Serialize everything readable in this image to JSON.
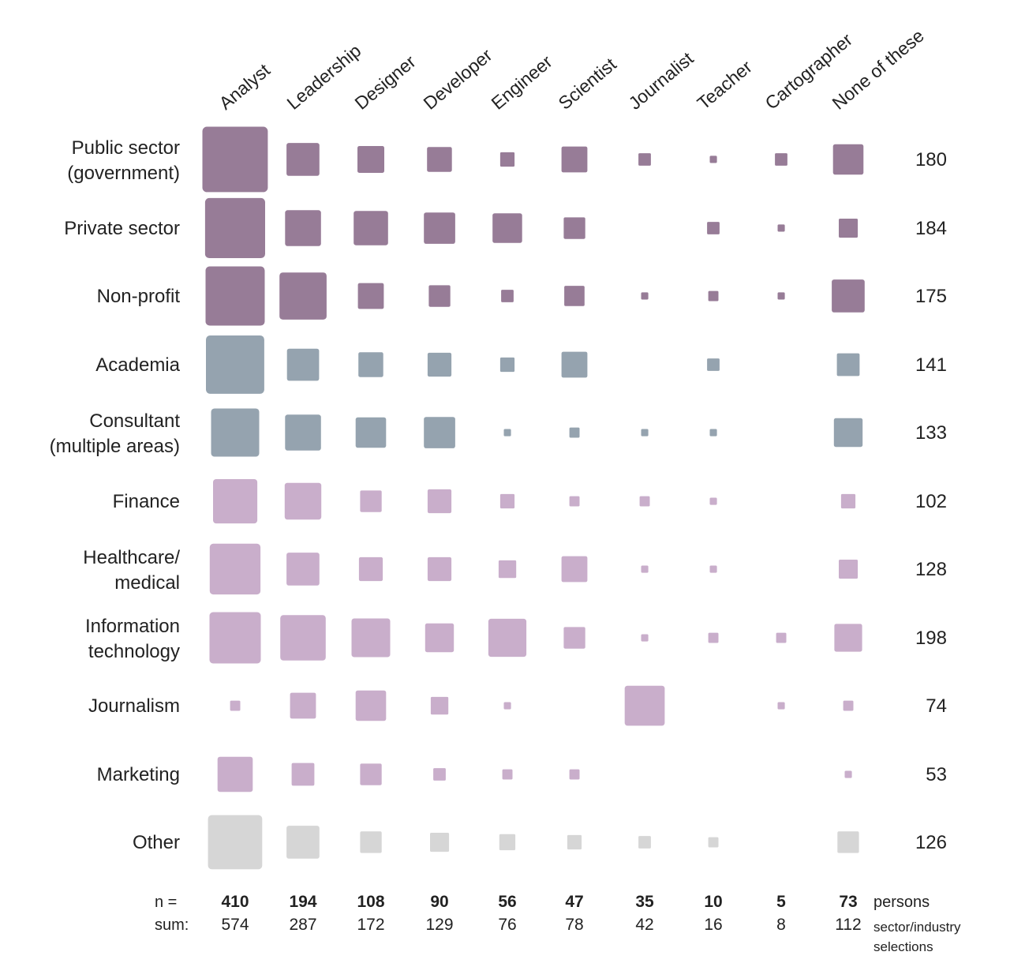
{
  "chart_data": {
    "type": "heatmap",
    "encoding": "square-area",
    "columns": [
      "Analyst",
      "Leadership",
      "Designer",
      "Developer",
      "Engineer",
      "Scientist",
      "Journalist",
      "Teacher",
      "Cartographer",
      "None of these"
    ],
    "rows": [
      {
        "label": [
          "Public sector",
          "(government)"
        ],
        "group": "purple_dark",
        "total": "180",
        "values": [
          83,
          21,
          14,
          12,
          4,
          13,
          3,
          1,
          3,
          18
        ]
      },
      {
        "label": [
          "Private sector"
        ],
        "group": "purple_dark",
        "total": "184",
        "values": [
          70,
          25,
          23,
          19,
          17,
          9,
          0,
          3,
          1,
          7
        ]
      },
      {
        "label": [
          "Non-profit"
        ],
        "group": "purple_dark",
        "total": "175",
        "values": [
          68,
          43,
          13,
          9,
          3,
          8,
          1,
          2,
          1,
          21
        ]
      },
      {
        "label": [
          "Academia"
        ],
        "group": "blue_gray",
        "total": "141",
        "values": [
          66,
          20,
          12,
          11,
          4,
          13,
          0,
          3,
          0,
          10
        ]
      },
      {
        "label": [
          "Consultant",
          "(multiple areas)"
        ],
        "group": "blue_gray",
        "total": "133",
        "values": [
          45,
          25,
          18,
          19,
          1,
          2,
          1,
          1,
          0,
          16
        ]
      },
      {
        "label": [
          "Finance"
        ],
        "group": "purple_light",
        "total": "102",
        "values": [
          38,
          26,
          9,
          11,
          4,
          2,
          2,
          1,
          0,
          4
        ]
      },
      {
        "label": [
          "Healthcare/",
          "medical"
        ],
        "group": "purple_light",
        "total": "128",
        "values": [
          50,
          21,
          11,
          11,
          6,
          13,
          1,
          1,
          0,
          7
        ]
      },
      {
        "label": [
          "Information",
          "technology"
        ],
        "group": "purple_light",
        "total": "198",
        "values": [
          51,
          40,
          29,
          16,
          28,
          9,
          1,
          2,
          2,
          15
        ]
      },
      {
        "label": [
          "Journalism"
        ],
        "group": "purple_light",
        "total": "74",
        "values": [
          2,
          13,
          18,
          6,
          1,
          0,
          31,
          0,
          1,
          2
        ]
      },
      {
        "label": [
          "Marketing"
        ],
        "group": "purple_light",
        "total": "53",
        "values": [
          24,
          10,
          9,
          3,
          2,
          2,
          0,
          0,
          0,
          1
        ]
      },
      {
        "label": [
          "Other"
        ],
        "group": "gray",
        "total": "126",
        "values": [
          57,
          21,
          9,
          7,
          5,
          4,
          3,
          2,
          0,
          9
        ]
      }
    ],
    "n": {
      "prefix": "n =",
      "values": [
        "410",
        "194",
        "108",
        "90",
        "56",
        "47",
        "35",
        "10",
        "5",
        "73"
      ],
      "note": "persons"
    },
    "sum": {
      "prefix": "sum:",
      "values": [
        "574",
        "287",
        "172",
        "129",
        "76",
        "78",
        "42",
        "16",
        "8",
        "112"
      ],
      "note": [
        "sector/industry",
        "selections"
      ]
    },
    "colors": {
      "purple_dark": "#977c97",
      "blue_gray": "#95a3af",
      "purple_light": "#c9aecb",
      "gray": "#d6d6d6"
    }
  }
}
